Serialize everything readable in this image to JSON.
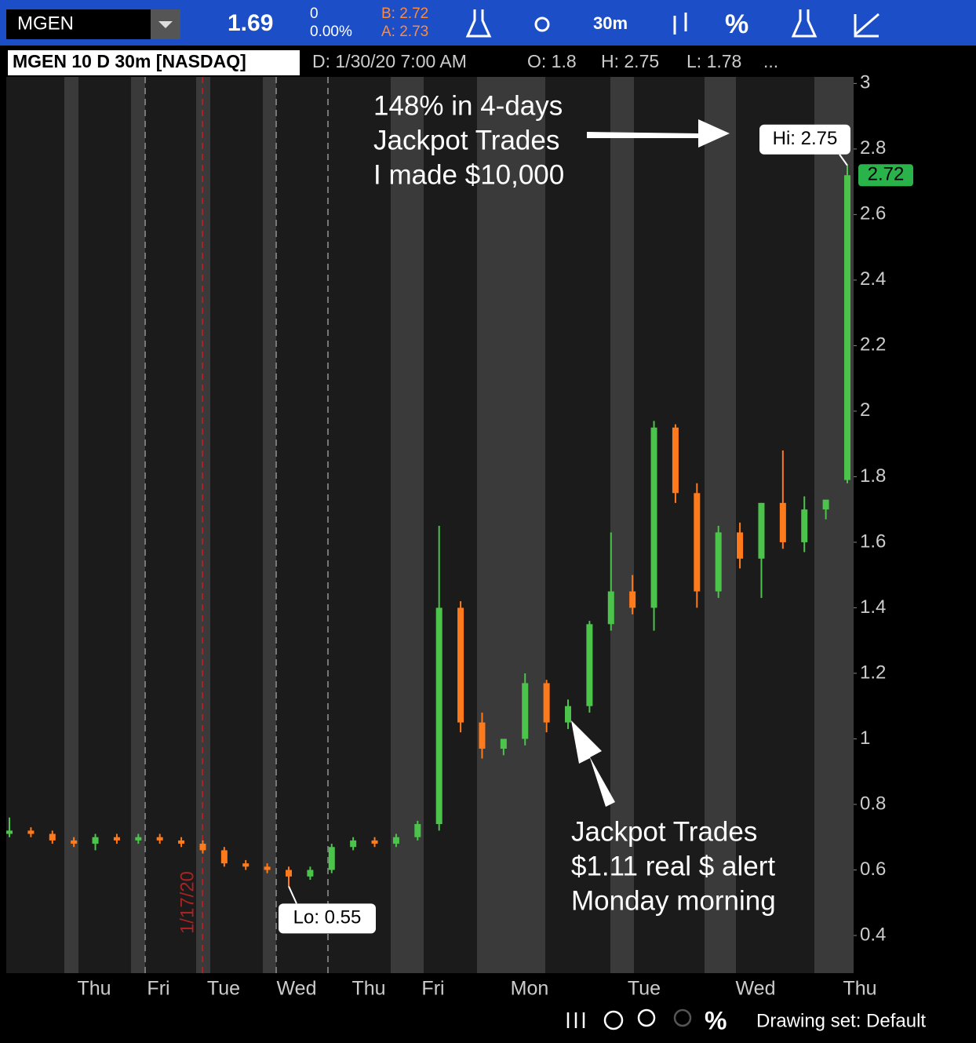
{
  "toolbar": {
    "symbol": "MGEN",
    "last": "1.69",
    "change": "0",
    "change_pct": "0.00%",
    "bid": "B: 2.72",
    "ask": "A: 2.73",
    "interval": "30m",
    "pct": "%"
  },
  "header": {
    "title": "MGEN 10 D 30m [NASDAQ]",
    "date": "D: 1/30/20 7:00 AM",
    "open": "O: 1.8",
    "high": "H: 2.75",
    "low": "L: 1.78",
    "more": "..."
  },
  "footer": {
    "pct": "%",
    "drawing_set": "Drawing set: Default"
  },
  "chart_data": {
    "type": "candlestick",
    "x_labels": [
      "Thu",
      "Fri",
      "Tue",
      "Wed",
      "Thu",
      "Fri",
      "Mon",
      "Tue",
      "Wed",
      "Thu"
    ],
    "open": [
      0.71,
      0.72,
      0.71,
      0.69,
      0.68,
      0.7,
      0.69,
      0.7,
      0.69,
      0.68,
      0.66,
      0.62,
      0.61,
      0.6,
      0.58,
      0.6,
      0.67,
      0.69,
      0.68,
      0.7,
      0.74,
      1.4,
      1.05,
      0.97,
      1.0,
      1.17,
      1.05,
      1.1,
      1.35,
      1.45,
      1.4,
      1.95,
      1.75,
      1.45,
      1.63,
      1.55,
      1.72,
      1.6,
      1.7,
      1.79
    ],
    "high": [
      0.76,
      0.73,
      0.72,
      0.7,
      0.71,
      0.71,
      0.71,
      0.71,
      0.7,
      0.69,
      0.67,
      0.63,
      0.62,
      0.61,
      0.61,
      0.68,
      0.7,
      0.7,
      0.71,
      0.75,
      1.65,
      1.42,
      1.08,
      1.0,
      1.2,
      1.18,
      1.12,
      1.36,
      1.63,
      1.5,
      1.97,
      1.96,
      1.78,
      1.65,
      1.66,
      1.72,
      1.88,
      1.74,
      1.72,
      2.75
    ],
    "low": [
      0.7,
      0.7,
      0.68,
      0.67,
      0.66,
      0.68,
      0.68,
      0.68,
      0.67,
      0.65,
      0.61,
      0.6,
      0.59,
      0.55,
      0.57,
      0.59,
      0.66,
      0.67,
      0.67,
      0.69,
      0.72,
      1.02,
      0.94,
      0.95,
      0.98,
      1.02,
      1.03,
      1.08,
      1.33,
      1.38,
      1.33,
      1.72,
      1.4,
      1.43,
      1.52,
      1.43,
      1.58,
      1.57,
      1.67,
      1.78
    ],
    "close": [
      0.72,
      0.71,
      0.69,
      0.68,
      0.7,
      0.69,
      0.7,
      0.69,
      0.68,
      0.66,
      0.62,
      0.61,
      0.6,
      0.58,
      0.6,
      0.67,
      0.69,
      0.68,
      0.7,
      0.74,
      1.4,
      1.05,
      0.97,
      1.0,
      1.17,
      1.05,
      1.1,
      1.35,
      1.45,
      1.4,
      1.95,
      1.75,
      1.45,
      1.63,
      1.55,
      1.72,
      1.6,
      1.7,
      1.73,
      2.72
    ],
    "up_color": "#4cc44c",
    "down_color": "#ff7a1a",
    "ylim": [
      0.285,
      3.02
    ],
    "yticks": [
      3,
      2.8,
      2.6,
      2.4,
      2.2,
      2,
      1.8,
      1.6,
      1.4,
      1.2,
      1,
      0.8,
      0.6,
      0.4
    ],
    "last_price": 2.72,
    "hi_label": "Hi: 2.75",
    "lo_label": "Lo: 0.55",
    "date_marker": "1/17/20",
    "annotations": [
      [
        "148% in 4-days",
        "Jackpot Trades",
        "I made $10,000"
      ],
      [
        "Jackpot Trades",
        "$1.11 real $ alert",
        "Monday morning"
      ]
    ]
  }
}
